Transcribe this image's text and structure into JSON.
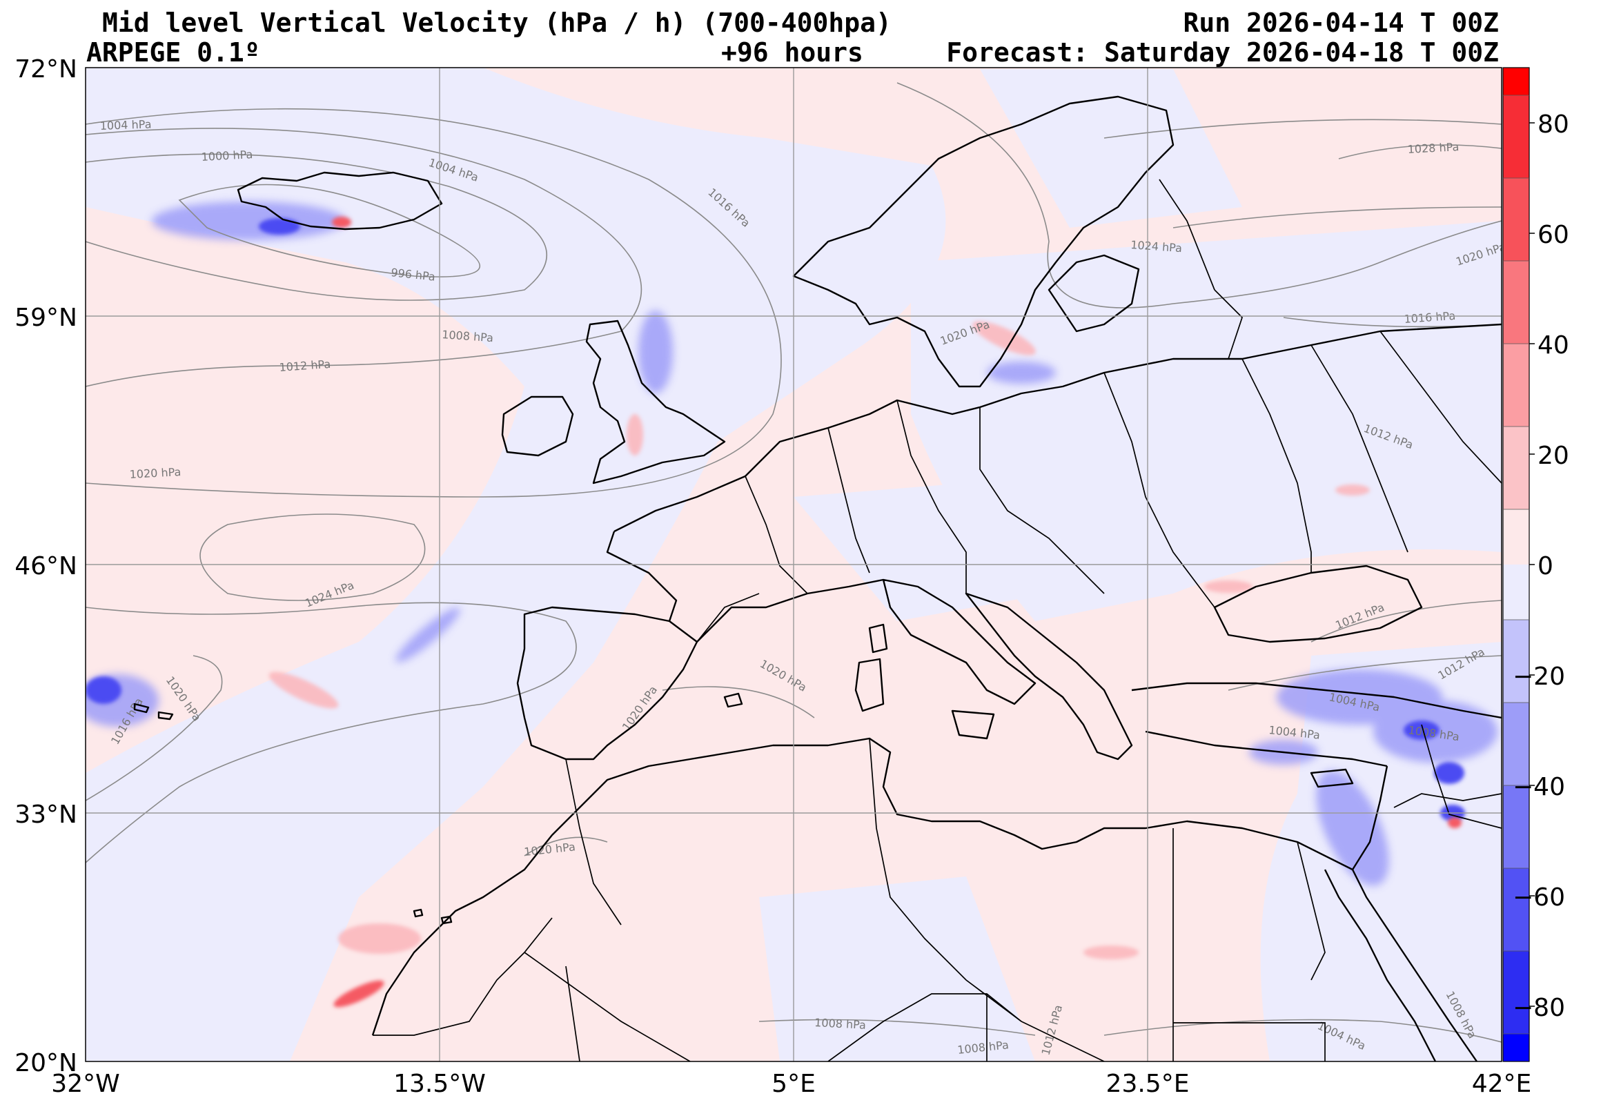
{
  "header": {
    "title": "Mid level Vertical Velocity (hPa / h)  (700-400hpa)",
    "model": "ARPEGE 0.1º",
    "lead": "+96 hours",
    "run": "Run 2026-04-14 T 00Z",
    "forecast": "Forecast: Saturday 2026-04-18 T 00Z"
  },
  "axes": {
    "lat_labels": [
      "72°N",
      "59°N",
      "46°N",
      "33°N",
      "20°N"
    ],
    "lon_labels": [
      "32°W",
      "13.5°W",
      "5°E",
      "23.5°E",
      "42°E"
    ]
  },
  "colorbar": {
    "labels": [
      "80",
      "60",
      "40",
      "20",
      "0",
      "−20",
      "−40",
      "−60",
      "−80"
    ],
    "range": [
      -90,
      90
    ],
    "positive_color": "#ff0000",
    "negative_color": "#0000ff"
  },
  "isobars": [
    {
      "label": "1004 hPa"
    },
    {
      "label": "1000 hPa"
    },
    {
      "label": "1004 hPa"
    },
    {
      "label": "1016 hPa"
    },
    {
      "label": "996 hPa"
    },
    {
      "label": "1008 hPa"
    },
    {
      "label": "1012 hPa"
    },
    {
      "label": "1020 hPa"
    },
    {
      "label": "1024 hPa"
    },
    {
      "label": "1020 hPa"
    },
    {
      "label": "1016 hPa"
    },
    {
      "label": "1020 hPa"
    },
    {
      "label": "1020 hPa"
    },
    {
      "label": "1020 hPa"
    },
    {
      "label": "1024 hPa"
    },
    {
      "label": "1028 hPa"
    },
    {
      "label": "1020 hPa"
    },
    {
      "label": "1016 hPa"
    },
    {
      "label": "1012 hPa"
    },
    {
      "label": "1012 hPa"
    },
    {
      "label": "1012 hPa"
    },
    {
      "label": "1004 hPa"
    },
    {
      "label": "1004 hPa"
    },
    {
      "label": "1008 hPa"
    },
    {
      "label": "1008 hPa"
    },
    {
      "label": "1008 hPa"
    },
    {
      "label": "1008 hPa"
    },
    {
      "label": "1004 hPa"
    },
    {
      "label": "1012 hPa"
    },
    {
      "label": "1020 hPa"
    }
  ]
}
